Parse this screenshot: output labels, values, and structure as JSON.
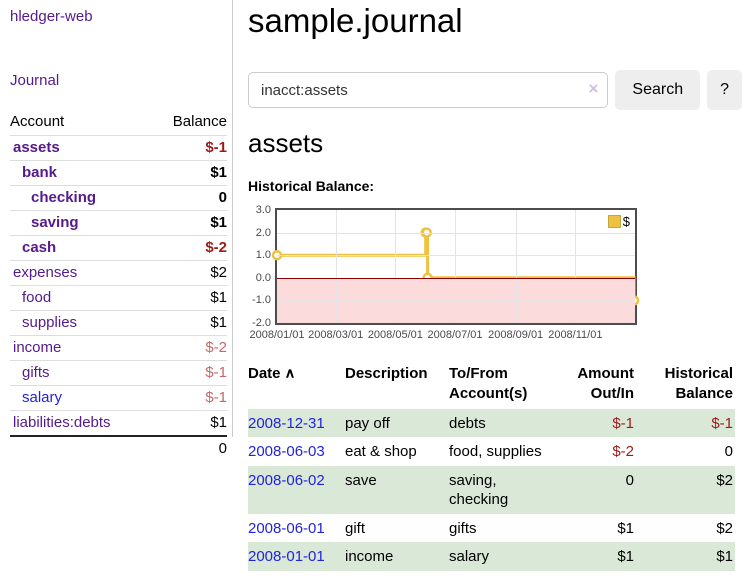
{
  "colors": {
    "link_purple": "#551a8b",
    "link_blue": "#2323dd",
    "neg_strong_red": "#9e1a1a",
    "neg_soft_red": "#c06a6a",
    "row_highlight_green": "#d9e8d7",
    "chart_line_gold": "#edc240",
    "chart_negative_fill_pink": "#fbdbdb",
    "chart_zero_line_red": "#8b0000"
  },
  "sidebar": {
    "app_title": "hledger-web",
    "journal_link": "Journal",
    "accounts_table": {
      "headers": {
        "account": "Account",
        "balance": "Balance"
      },
      "rows": [
        {
          "account": "assets",
          "balance": "$-1",
          "level": 1,
          "bold": true,
          "balance_style": "negstrong",
          "link_style": "purple"
        },
        {
          "account": "bank",
          "balance": "$1",
          "level": 2,
          "bold": true,
          "balance_style": "normal",
          "link_style": "purple"
        },
        {
          "account": "checking",
          "balance": "0",
          "level": 3,
          "bold": true,
          "balance_style": "normal",
          "link_style": "purple"
        },
        {
          "account": "saving",
          "balance": "$1",
          "level": 3,
          "bold": true,
          "balance_style": "normal",
          "link_style": "purple"
        },
        {
          "account": "cash",
          "balance": "$-2",
          "level": 2,
          "bold": true,
          "balance_style": "negstrong",
          "link_style": "purple"
        },
        {
          "account": "expenses",
          "balance": "$2",
          "level": 1,
          "bold": false,
          "balance_style": "normal",
          "link_style": "purple"
        },
        {
          "account": "food",
          "balance": "$1",
          "level": 2,
          "bold": false,
          "balance_style": "normal",
          "link_style": "purple"
        },
        {
          "account": "supplies",
          "balance": "$1",
          "level": 2,
          "bold": false,
          "balance_style": "normal",
          "link_style": "purple"
        },
        {
          "account": "income",
          "balance": "$-2",
          "level": 1,
          "bold": false,
          "balance_style": "negsoft",
          "link_style": "purple"
        },
        {
          "account": "gifts",
          "balance": "$-1",
          "level": 2,
          "bold": false,
          "balance_style": "negsoft",
          "link_style": "purple"
        },
        {
          "account": "salary",
          "balance": "$-1",
          "level": 2,
          "bold": false,
          "balance_style": "negsoft",
          "link_style": "blue"
        },
        {
          "account": "liabilities:debts",
          "balance": "$1",
          "level": 1,
          "bold": false,
          "balance_style": "normal",
          "link_style": "purple"
        }
      ],
      "total": "0"
    }
  },
  "main": {
    "title": "sample.journal",
    "search": {
      "value": "inacct:assets",
      "clear_icon": "×",
      "search_button": "Search",
      "help_button": "?"
    },
    "account_heading": "assets",
    "register": {
      "columns": [
        {
          "label": "Date",
          "align": "left",
          "sorted": "asc"
        },
        {
          "label": "Description",
          "align": "left"
        },
        {
          "label": "To/From Account(s)",
          "align": "left"
        },
        {
          "label": "Amount Out/In",
          "align": "right"
        },
        {
          "label": "Historical Balance",
          "align": "right"
        }
      ],
      "sort_caret": "∧",
      "rows": [
        {
          "date": "2008-12-31",
          "description": "pay off",
          "accounts": "debts",
          "amount": "$-1",
          "amount_negative": true,
          "balance": "$-1",
          "balance_negative": true,
          "highlighted": true
        },
        {
          "date": "2008-06-03",
          "description": "eat & shop",
          "accounts": "food, supplies",
          "amount": "$-2",
          "amount_negative": true,
          "balance": "0",
          "balance_negative": false,
          "highlighted": false
        },
        {
          "date": "2008-06-02",
          "description": "save",
          "accounts": "saving, checking",
          "amount": "0",
          "amount_negative": false,
          "balance": "$2",
          "balance_negative": false,
          "highlighted": true
        },
        {
          "date": "2008-06-01",
          "description": "gift",
          "accounts": "gifts",
          "amount": "$1",
          "amount_negative": false,
          "balance": "$2",
          "balance_negative": false,
          "highlighted": false
        },
        {
          "date": "2008-01-01",
          "description": "income",
          "accounts": "salary",
          "amount": "$1",
          "amount_negative": false,
          "balance": "$1",
          "balance_negative": false,
          "highlighted": true
        }
      ]
    }
  },
  "chart_data": {
    "type": "line",
    "line_style": "step",
    "title": "Historical Balance:",
    "x_range": [
      "2008-01-01",
      "2009-01-01"
    ],
    "ylim": [
      -2,
      3
    ],
    "yticks": [
      {
        "label": "3.0",
        "value": 3
      },
      {
        "label": "2.0",
        "value": 2
      },
      {
        "label": "1.0",
        "value": 1
      },
      {
        "label": "0.0",
        "value": 0
      },
      {
        "label": "-1.0",
        "value": -1
      },
      {
        "label": "-2.0",
        "value": -2
      }
    ],
    "xticks": [
      {
        "label": "2008/01/01",
        "date": "2008-01-01"
      },
      {
        "label": "2008/03/01",
        "date": "2008-03-01"
      },
      {
        "label": "2008/05/01",
        "date": "2008-05-01"
      },
      {
        "label": "2008/07/01",
        "date": "2008-07-01"
      },
      {
        "label": "2008/09/01",
        "date": "2008-09-01"
      },
      {
        "label": "2008/11/01",
        "date": "2008-11-01"
      }
    ],
    "series": [
      {
        "name": "$",
        "points": [
          [
            "2008-01-01",
            1
          ],
          [
            "2008-06-01",
            2
          ],
          [
            "2008-06-02",
            2
          ],
          [
            "2008-06-03",
            0
          ],
          [
            "2008-12-31",
            -1
          ]
        ]
      }
    ],
    "legend": {
      "label": "$",
      "position": "top-right"
    },
    "grid": true
  }
}
